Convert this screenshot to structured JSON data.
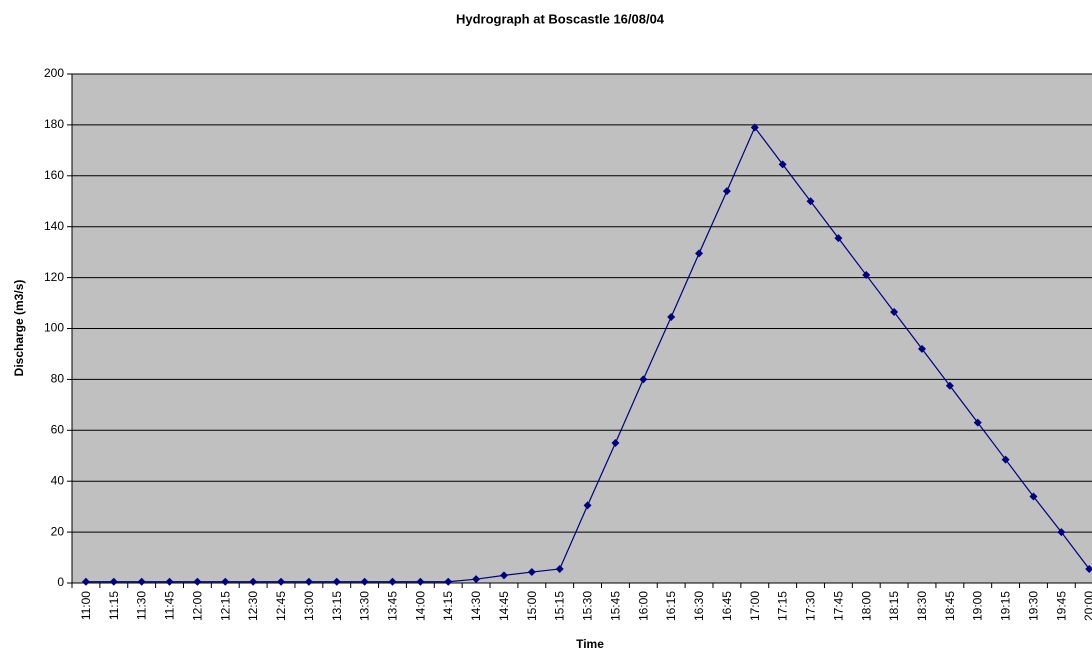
{
  "chart_data": {
    "type": "line",
    "title": "Hydrograph at Boscastle 16/08/04",
    "x_label": "Time",
    "y_label": "Discharge (m3/s)",
    "categories": [
      "11:00",
      "11:15",
      "11:30",
      "11:45",
      "12:00",
      "12:15",
      "12:30",
      "12:45",
      "13:00",
      "13:15",
      "13:30",
      "13:45",
      "14:00",
      "14:15",
      "14:30",
      "14:45",
      "15:00",
      "15:15",
      "15:30",
      "15:45",
      "16:00",
      "16:15",
      "16:30",
      "16:45",
      "17:00",
      "17:15",
      "17:30",
      "17:45",
      "18:00",
      "18:15",
      "18:30",
      "18:45",
      "19:00",
      "19:15",
      "19:30",
      "19:45",
      "20:00"
    ],
    "values": [
      0.5,
      0.5,
      0.5,
      0.5,
      0.5,
      0.5,
      0.5,
      0.5,
      0.5,
      0.5,
      0.5,
      0.5,
      0.5,
      0.5,
      1.5,
      3,
      4.3,
      5.5,
      30.5,
      55,
      80,
      104.5,
      129.5,
      154,
      179,
      164.5,
      150,
      135.5,
      121,
      106.5,
      92,
      77.5,
      63,
      48.5,
      34,
      20,
      5.5
    ],
    "color": "#000080",
    "plot_background": "#c0c0c0",
    "ylim": [
      0,
      200
    ],
    "yticks": [
      0,
      20,
      40,
      60,
      80,
      100,
      120,
      140,
      160,
      180,
      200
    ],
    "grid": true
  }
}
